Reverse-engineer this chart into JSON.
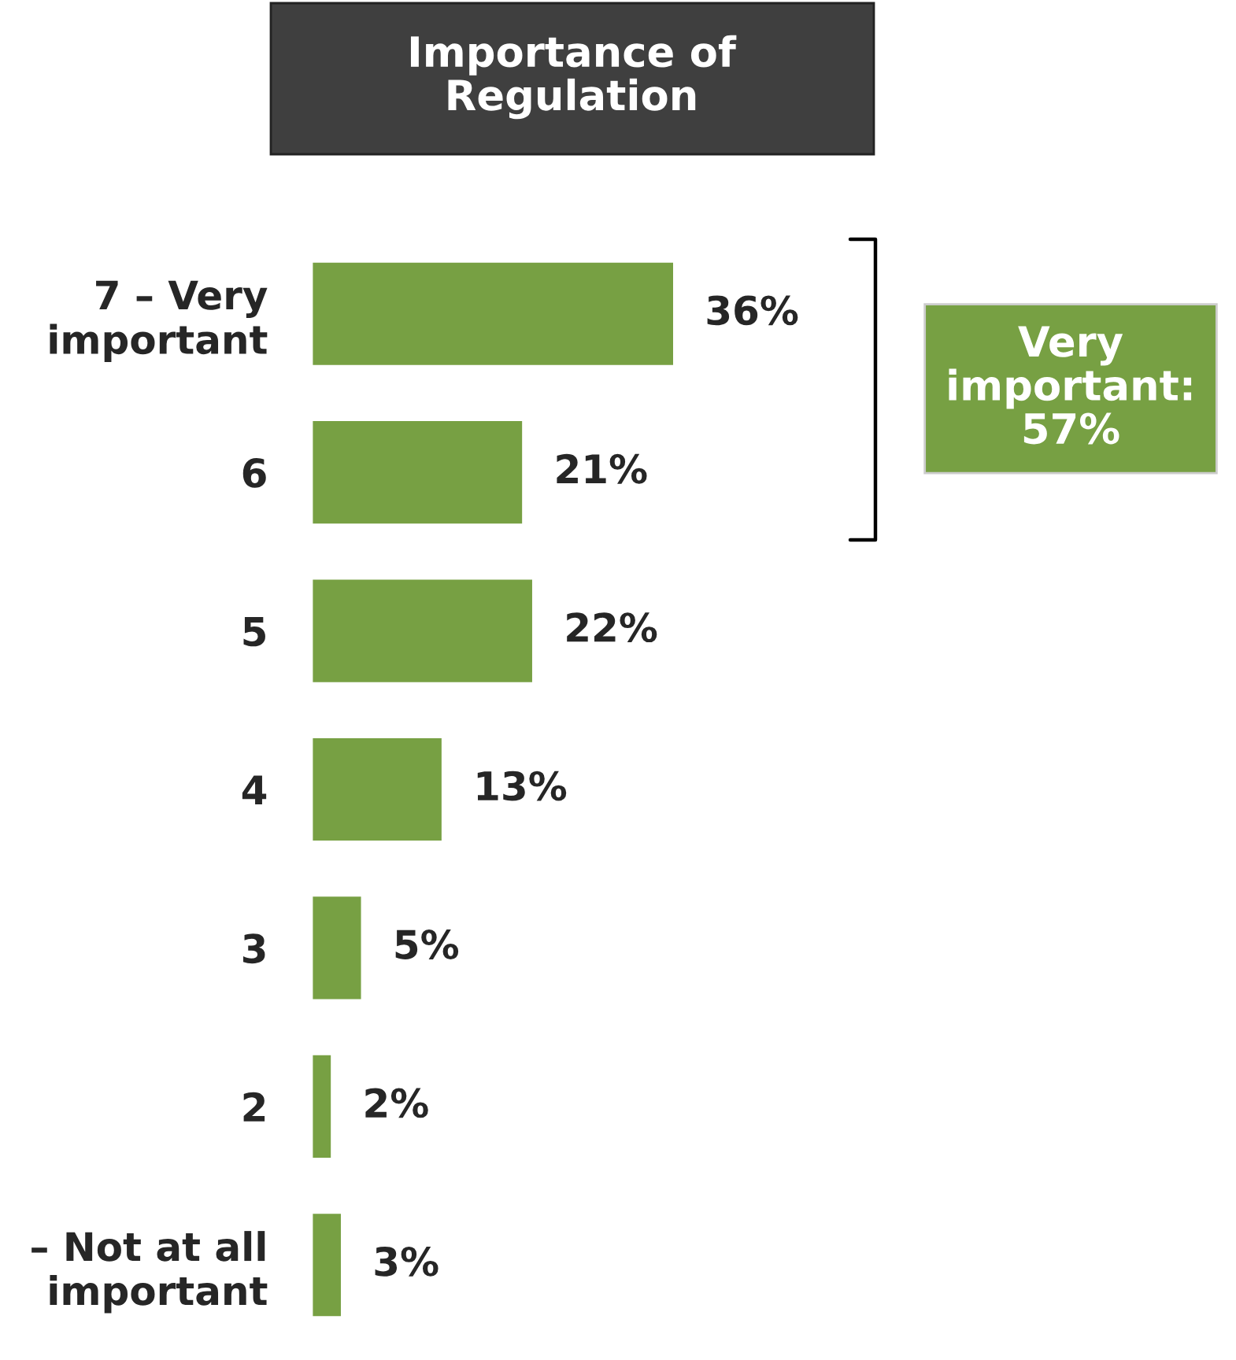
{
  "chart_data": {
    "type": "bar",
    "orientation": "horizontal",
    "title": "Importance of\nRegulation",
    "categories": [
      "7 – Very\nimportant",
      "6",
      "5",
      "4",
      "3",
      "2",
      "– Not at all\nimportant"
    ],
    "values": [
      36,
      21,
      22,
      13,
      5,
      2,
      3
    ],
    "value_labels": [
      "36%",
      "21%",
      "22%",
      "13%",
      "5%",
      "2%",
      "3%"
    ],
    "color": "#77a043",
    "tick_labels": "y",
    "annotations": [
      "Very important: 57%"
    ]
  }
}
